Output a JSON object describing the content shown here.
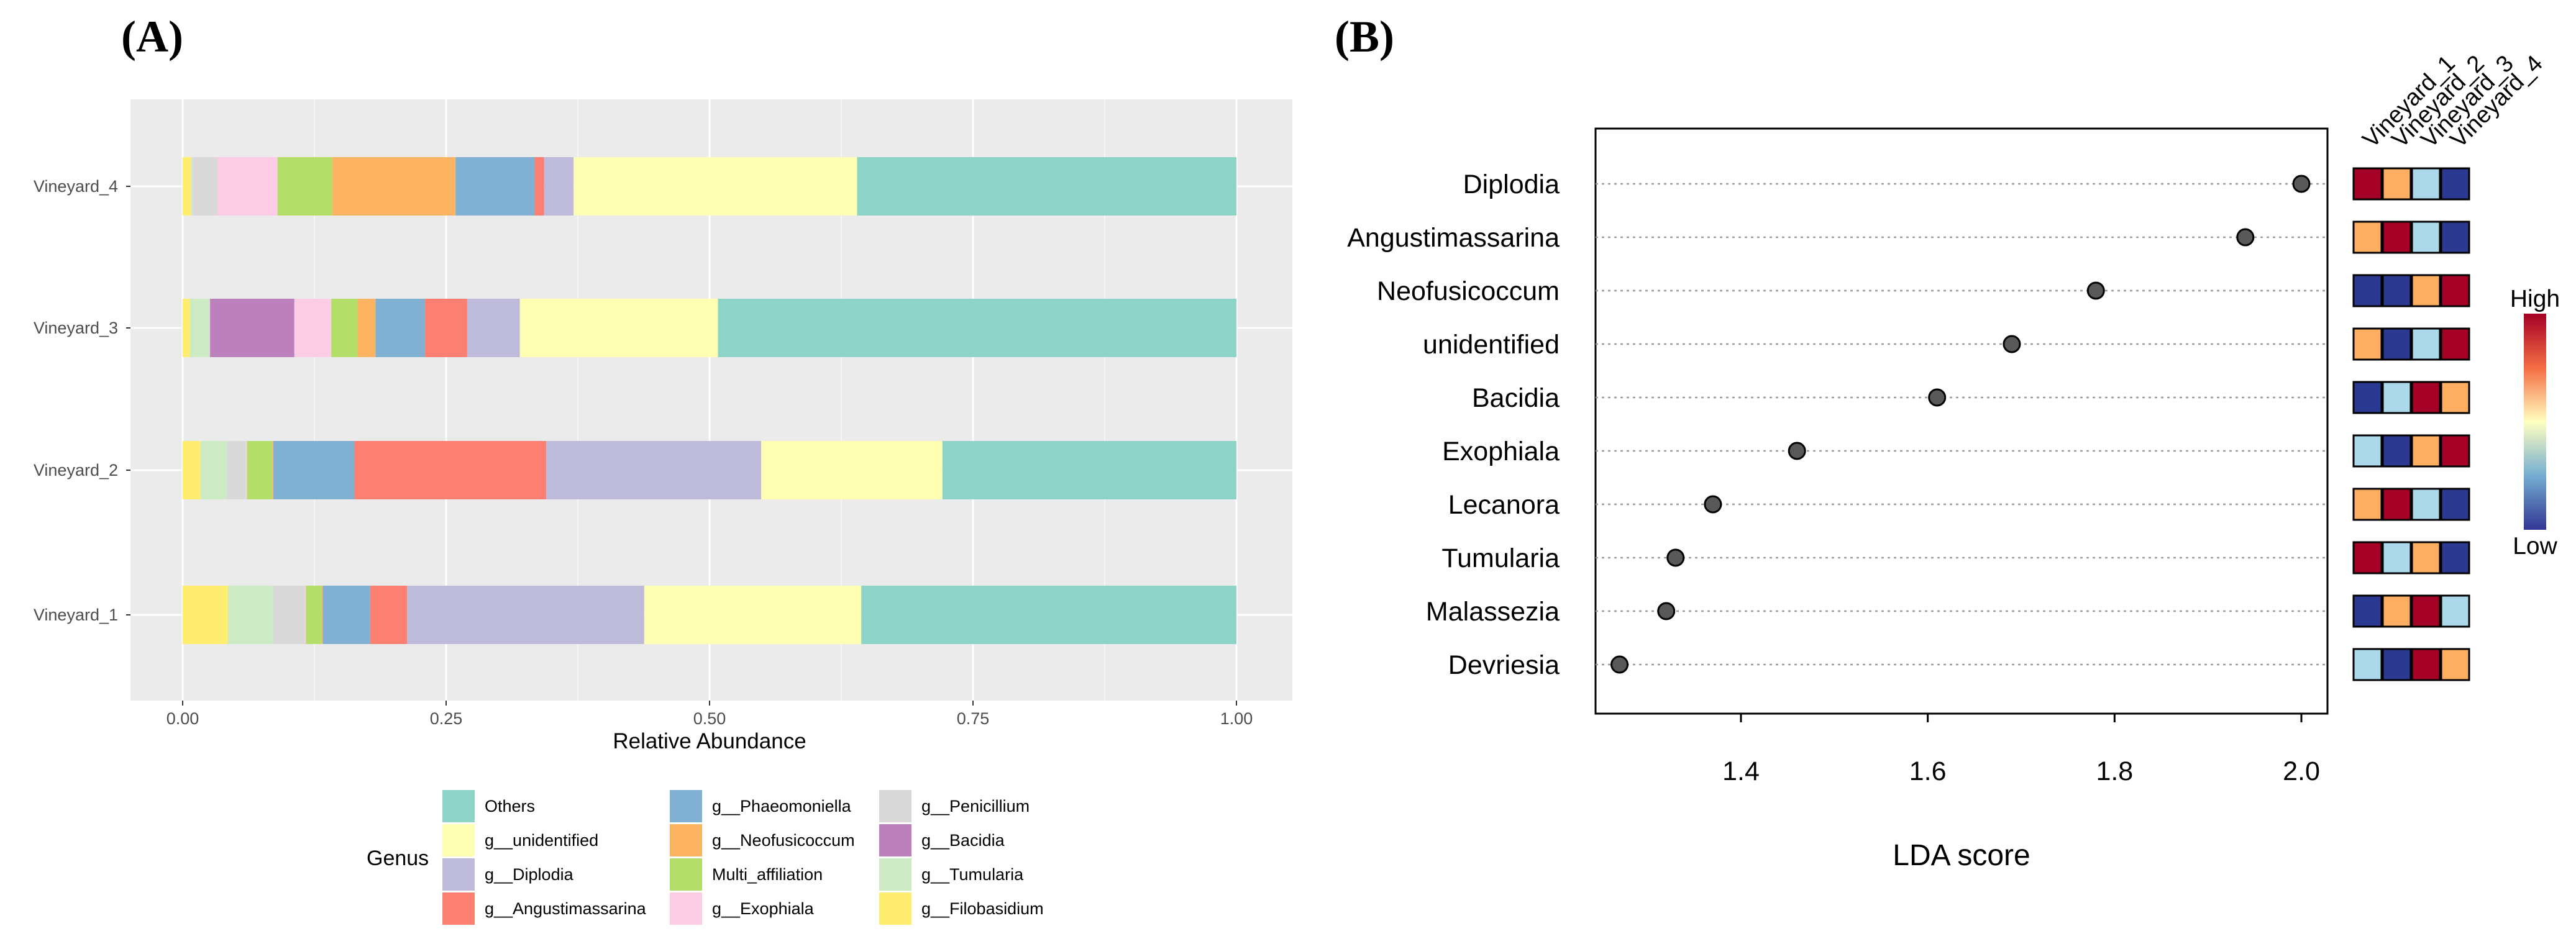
{
  "figure": {
    "label_a": "(A)",
    "label_b": "(B)"
  },
  "chart_data": [
    {
      "type": "bar",
      "orientation": "horizontal",
      "stacked": true,
      "categories": [
        "Vineyard_1",
        "Vineyard_2",
        "Vineyard_3",
        "Vineyard_4"
      ],
      "xlabel": "Relative Abundance",
      "ylabel": "",
      "xlim": [
        0,
        1
      ],
      "xticks": [
        "0.00",
        "0.25",
        "0.50",
        "0.75",
        "1.00"
      ],
      "grid": true,
      "legend_title": "Genus",
      "legend_position": "bottom",
      "series": [
        {
          "name": "g__Filobasidium",
          "color": "#FFED6F",
          "values": [
            0.043,
            0.017,
            0.007,
            0.008
          ]
        },
        {
          "name": "g__Tumularia",
          "color": "#CCEBC5",
          "values": [
            0.043,
            0.025,
            0.018,
            0.001
          ]
        },
        {
          "name": "g__Penicillium",
          "color": "#D9D9D9",
          "values": [
            0.03,
            0.018,
            0.001,
            0.024
          ]
        },
        {
          "name": "g__Bacidia",
          "color": "#BC80BD",
          "values": [
            0.0,
            0.0,
            0.08,
            0.0
          ]
        },
        {
          "name": "g__Exophiala",
          "color": "#FCCDE5",
          "values": [
            0.001,
            0.001,
            0.035,
            0.057
          ]
        },
        {
          "name": "Multi_affiliation",
          "color": "#B3DE69",
          "values": [
            0.015,
            0.024,
            0.025,
            0.052
          ]
        },
        {
          "name": "g__Neofusicoccum",
          "color": "#FDB462",
          "values": [
            0.001,
            0.001,
            0.017,
            0.117
          ]
        },
        {
          "name": "g__Phaeomoniella",
          "color": "#80B1D3",
          "values": [
            0.045,
            0.077,
            0.047,
            0.075
          ]
        },
        {
          "name": "g__Angustimassarina",
          "color": "#FB8072",
          "values": [
            0.035,
            0.182,
            0.04,
            0.009
          ]
        },
        {
          "name": "g__Diplodia",
          "color": "#BEBADA",
          "values": [
            0.225,
            0.204,
            0.05,
            0.028
          ]
        },
        {
          "name": "g__unidentified",
          "color": "#FFFFB3",
          "values": [
            0.206,
            0.172,
            0.188,
            0.269
          ]
        },
        {
          "name": "Others",
          "color": "#8DD3C7",
          "values": [
            0.356,
            0.279,
            0.492,
            0.36
          ]
        }
      ],
      "legend_entries": [
        "Others",
        "g__unidentified",
        "g__Diplodia",
        "g__Angustimassarina",
        "g__Phaeomoniella",
        "g__Neofusicoccum",
        "Multi_affiliation",
        "g__Exophiala",
        "g__Penicillium",
        "g__Bacidia",
        "g__Tumularia",
        "g__Filobasidium"
      ]
    },
    {
      "type": "scatter",
      "subtype": "dot_plot",
      "xlabel": "LDA score",
      "xlim": [
        1.25,
        2.03
      ],
      "xticks": [
        "1.4",
        "1.6",
        "1.8",
        "2.0"
      ],
      "xtick_values": [
        1.4,
        1.6,
        1.8,
        2.0
      ],
      "categories": [
        "Diplodia",
        "Angustimassarina",
        "Neofusicoccum",
        "unidentified",
        "Bacidia",
        "Exophiala",
        "Lecanora",
        "Tumularia",
        "Malassezia",
        "Devriesia"
      ],
      "values": [
        2.0,
        1.94,
        1.78,
        1.69,
        1.61,
        1.46,
        1.37,
        1.33,
        1.32,
        1.27
      ],
      "heatmap": {
        "columns": [
          "Vineyard_1",
          "Vineyard_2",
          "Vineyard_3",
          "Vineyard_4"
        ],
        "levels": [
          [
            4,
            3,
            2,
            1
          ],
          [
            3,
            4,
            2,
            1
          ],
          [
            1,
            1,
            3,
            4
          ],
          [
            3,
            1,
            2,
            4
          ],
          [
            1,
            2,
            4,
            3
          ],
          [
            2,
            1,
            3,
            4
          ],
          [
            3,
            4,
            2,
            1
          ],
          [
            4,
            2,
            3,
            1
          ],
          [
            1,
            3,
            4,
            2
          ],
          [
            2,
            1,
            4,
            3
          ]
        ],
        "level_colors": {
          "1": "#2B3990",
          "2": "#ABD9E9",
          "3": "#FDAE61",
          "4": "#A50026"
        },
        "scale_high": "High",
        "scale_low": "Low"
      }
    }
  ]
}
